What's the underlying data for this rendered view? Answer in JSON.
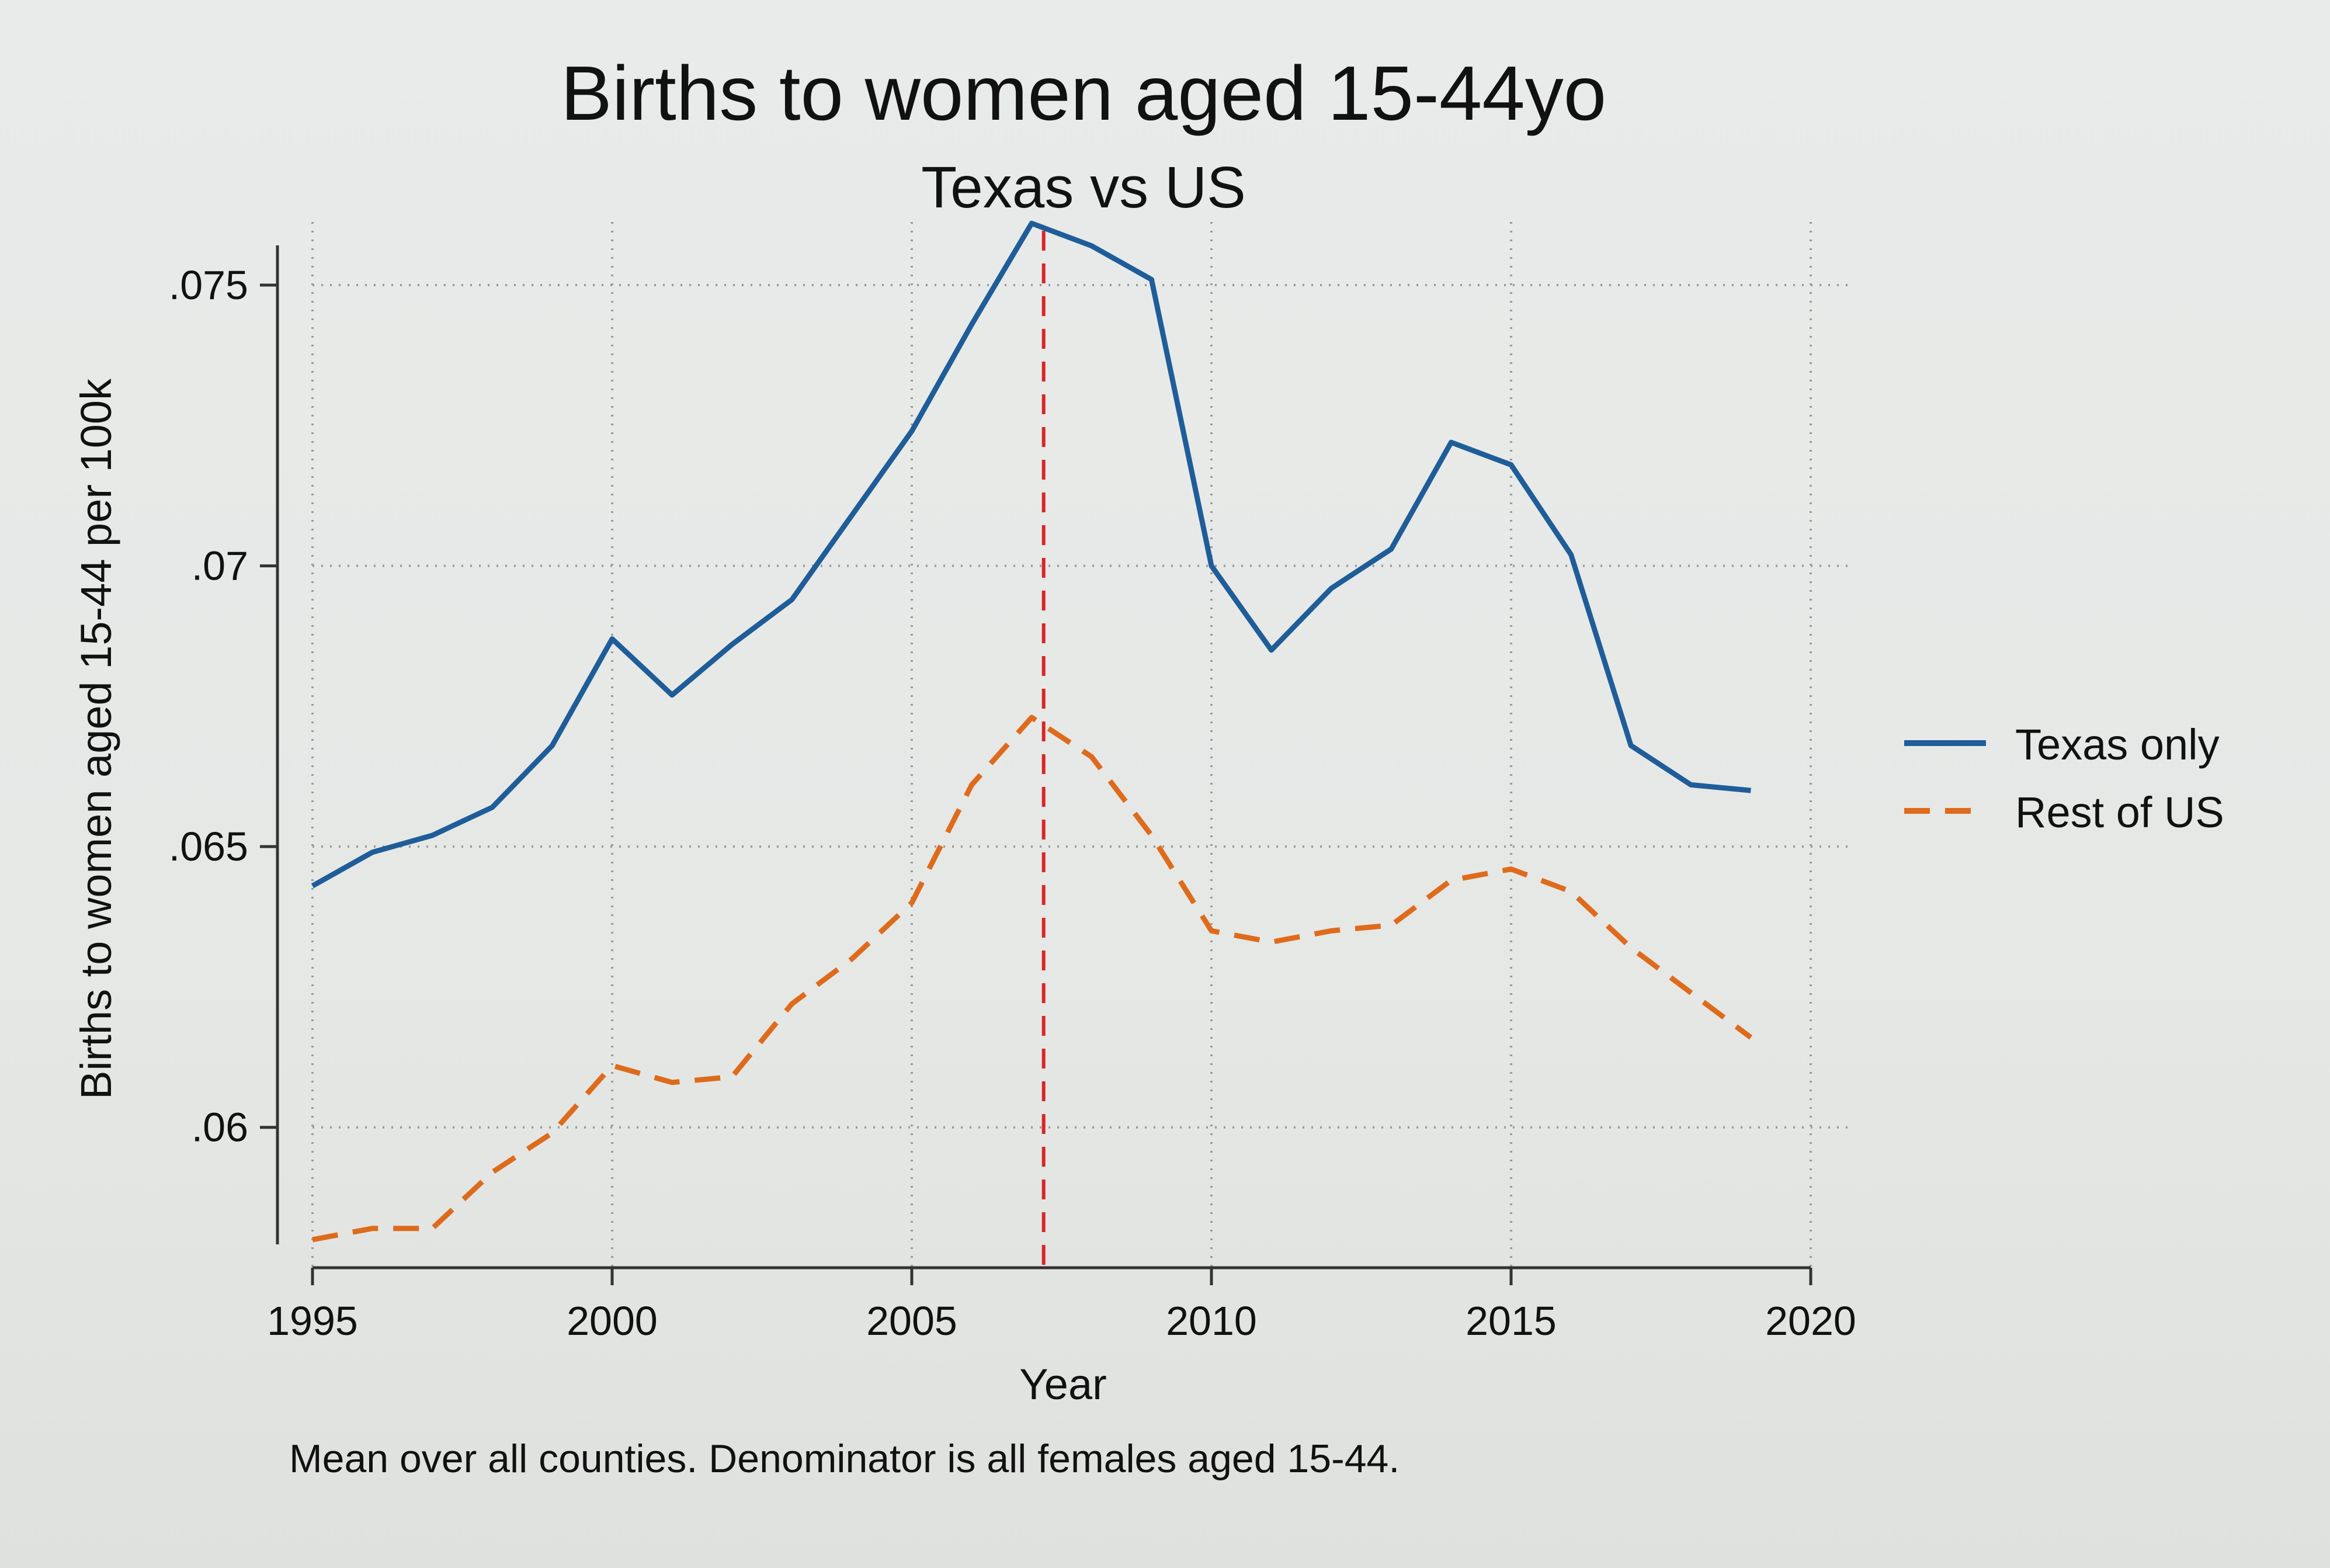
{
  "chart_data": {
    "type": "line",
    "title": "Births to women aged 15-44yo",
    "subtitle": "Texas vs US",
    "xlabel": "Year",
    "ylabel": "Births to women aged 15-44 per 100k",
    "note": "Mean over all counties.  Denominator is all females aged 15-44.",
    "xlim": [
      1995,
      2020
    ],
    "ylim": [
      0.0575,
      0.0755
    ],
    "xticks": [
      1995,
      2000,
      2005,
      2010,
      2015,
      2020
    ],
    "xtick_labels": [
      "1995",
      "2000",
      "2005",
      "2010",
      "2015",
      "2020"
    ],
    "yticks": [
      0.06,
      0.065,
      0.07,
      0.075
    ],
    "ytick_labels": [
      ".06",
      ".065",
      ".07",
      ".075"
    ],
    "grid": true,
    "legend_position": "right",
    "reference_line": {
      "x": 2007.2,
      "color": "#d62728",
      "style": "dashed"
    },
    "x": [
      1995,
      1996,
      1997,
      1998,
      1999,
      2000,
      2001,
      2002,
      2003,
      2004,
      2005,
      2006,
      2007,
      2008,
      2009,
      2010,
      2011,
      2012,
      2013,
      2014,
      2015,
      2016,
      2017,
      2018,
      2019
    ],
    "series": [
      {
        "name": "Texas only",
        "color": "#1f5d99",
        "style": "solid",
        "values": [
          0.0643,
          0.0649,
          0.0652,
          0.0657,
          0.0668,
          0.0687,
          0.0677,
          0.0686,
          0.0694,
          0.0709,
          0.0724,
          0.0743,
          0.0761,
          0.0757,
          0.0751,
          0.07,
          0.0685,
          0.0696,
          0.0703,
          0.0722,
          0.0718,
          0.0702,
          0.0668,
          0.0661,
          0.066
        ]
      },
      {
        "name": "Rest of US",
        "color": "#de6b1c",
        "style": "dashed",
        "values": [
          0.058,
          0.0582,
          0.0582,
          0.0592,
          0.0599,
          0.0611,
          0.0608,
          0.0609,
          0.0622,
          0.063,
          0.064,
          0.0661,
          0.0673,
          0.0666,
          0.0652,
          0.0635,
          0.0633,
          0.0635,
          0.0636,
          0.0644,
          0.0646,
          0.0642,
          0.0632,
          0.0624,
          0.0616
        ]
      }
    ]
  }
}
